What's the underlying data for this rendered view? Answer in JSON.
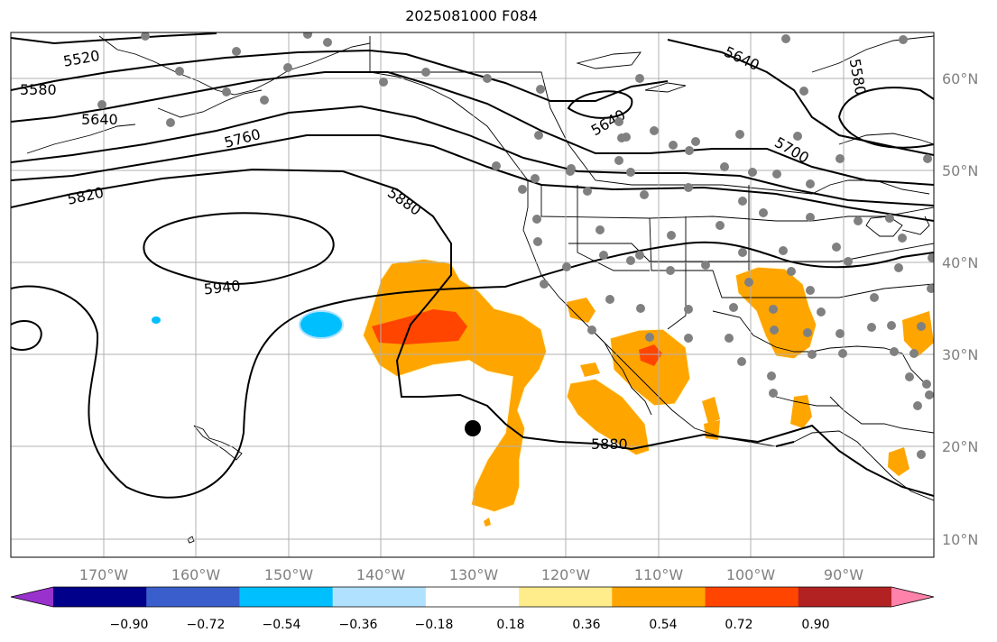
{
  "title": "2025081000 F084",
  "lat_labels": [
    "60°N",
    "50°N",
    "40°N",
    "30°N",
    "20°N",
    "10°N"
  ],
  "lon_labels": [
    "170°W",
    "160°W",
    "150°W",
    "140°W",
    "130°W",
    "120°W",
    "110°W",
    "100°W",
    "90°W"
  ],
  "contour_labels": [
    "5520",
    "5580",
    "5640",
    "5760",
    "5820",
    "5880",
    "5940",
    "5640",
    "5640",
    "5700",
    "5580",
    "5880"
  ],
  "colorbar": {
    "ticks": [
      "−0.90",
      "−0.72",
      "−0.54",
      "−0.36",
      "−0.18",
      "0.18",
      "0.36",
      "0.54",
      "0.72",
      "0.90"
    ],
    "colors": [
      "#9932cc",
      "#00008b",
      "#3a5fcd",
      "#00bfff",
      "#b0e2ff",
      "#ffffff",
      "#ffec8b",
      "#ffa500",
      "#ff4500",
      "#b22222",
      "#ff82ab"
    ]
  },
  "colors": {
    "contour": "#000000",
    "grid": "#b0b0b0",
    "stations": "#808080",
    "axis_labels": "#808080"
  }
}
